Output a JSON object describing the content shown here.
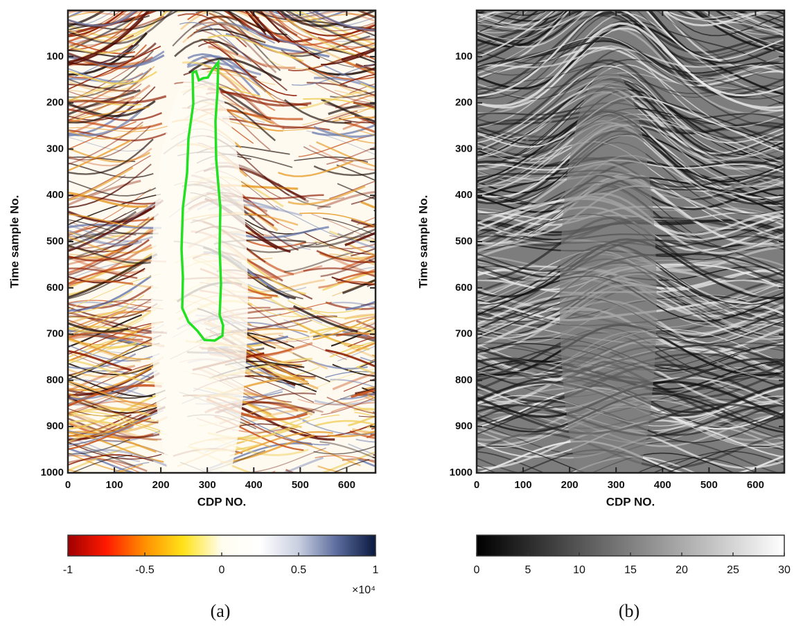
{
  "chart_data": [
    {
      "type": "heatmap",
      "xlabel": "CDP NO.",
      "ylabel": "Time sample No.",
      "xlim": [
        0,
        662
      ],
      "ylim": [
        0,
        1000
      ],
      "xticks": [
        0,
        100,
        200,
        300,
        400,
        500,
        600
      ],
      "yticks": [
        100,
        200,
        300,
        400,
        500,
        600,
        700,
        800,
        900,
        1000
      ],
      "colorbar": {
        "lim": [
          -1,
          1
        ],
        "ticks": [
          -1,
          -0.5,
          0,
          0.5,
          1
        ],
        "colors": [
          "#a00000",
          "#ff1a00",
          "#ff9000",
          "#ffe21a",
          "#fffdf0",
          "#ffffff",
          "#c9cfe0",
          "#5b6b9c",
          "#08183f"
        ],
        "multiplier": "×10⁴"
      },
      "caption": "(a)"
    },
    {
      "type": "heatmap",
      "xlabel": "CDP NO.",
      "ylabel": "Time sample No.",
      "xlim": [
        0,
        662
      ],
      "ylim": [
        0,
        1000
      ],
      "xticks": [
        0,
        100,
        200,
        300,
        400,
        500,
        600
      ],
      "yticks": [
        100,
        200,
        300,
        400,
        500,
        600,
        700,
        800,
        900,
        1000
      ],
      "colorbar": {
        "lim": [
          0,
          30
        ],
        "ticks": [
          0,
          5,
          10,
          15,
          20,
          25,
          30
        ],
        "colors": [
          "#000000",
          "#ffffff"
        ]
      },
      "caption": "(b)"
    }
  ]
}
